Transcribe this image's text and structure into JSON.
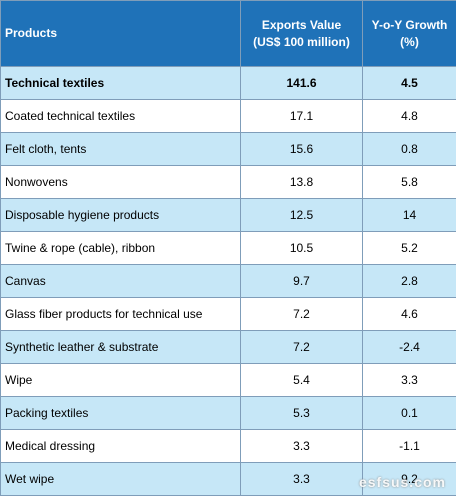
{
  "header": {
    "col1": "Products",
    "col2_line1": "Exports Value",
    "col2_line2": "(US$ 100 million)",
    "col3_line1": "Y-o-Y Growth",
    "col3_line2": "(%)"
  },
  "rows": [
    {
      "product": "Technical textiles",
      "value": "141.6",
      "growth": "4.5"
    },
    {
      "product": "Coated technical textiles",
      "value": "17.1",
      "growth": "4.8"
    },
    {
      "product": "Felt cloth, tents",
      "value": "15.6",
      "growth": "0.8"
    },
    {
      "product": "Nonwovens",
      "value": "13.8",
      "growth": "5.8"
    },
    {
      "product": "Disposable hygiene products",
      "value": "12.5",
      "growth": "14"
    },
    {
      "product": "Twine & rope (cable), ribbon",
      "value": "10.5",
      "growth": "5.2"
    },
    {
      "product": "Canvas",
      "value": "9.7",
      "growth": "2.8"
    },
    {
      "product": "Glass fiber products for technical use",
      "value": "7.2",
      "growth": "4.6"
    },
    {
      "product": "Synthetic leather & substrate",
      "value": "7.2",
      "growth": "-2.4"
    },
    {
      "product": "Wipe",
      "value": "5.4",
      "growth": "3.3"
    },
    {
      "product": "Packing textiles",
      "value": "5.3",
      "growth": "0.1"
    },
    {
      "product": "Medical dressing",
      "value": "3.3",
      "growth": "-1.1"
    },
    {
      "product": "Wet wipe",
      "value": "3.3",
      "growth": "9.2"
    }
  ],
  "watermark": "esfsus.com"
}
